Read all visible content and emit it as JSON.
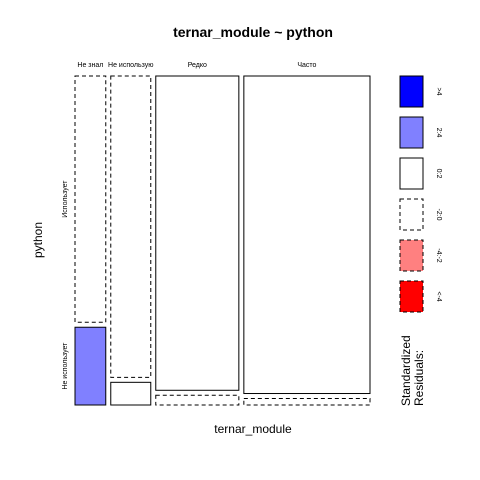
{
  "chart_data": {
    "type": "mosaic",
    "title": "ternar_module ~ python",
    "xlabel": "ternar_module",
    "ylabel": "python",
    "columns": [
      "Не знал",
      "Не использую",
      "Редко",
      "Часто"
    ],
    "rows": [
      "Использует",
      "Не использует"
    ],
    "column_shares": [
      0.1,
      0.13,
      0.27,
      0.41
    ],
    "cells": [
      {
        "column": "Не знал",
        "row": "Использует",
        "share": 0.76,
        "residual_class": "-2:0"
      },
      {
        "column": "Не знал",
        "row": "Не использует",
        "share": 0.24,
        "residual_class": "2:4"
      },
      {
        "column": "Не использую",
        "row": "Использует",
        "share": 0.93,
        "residual_class": "-2:0"
      },
      {
        "column": "Не использую",
        "row": "Не использует",
        "share": 0.07,
        "residual_class": "0:2"
      },
      {
        "column": "Редко",
        "row": "Использует",
        "share": 0.97,
        "residual_class": "0:2"
      },
      {
        "column": "Редко",
        "row": "Не использует",
        "share": 0.03,
        "residual_class": "-2:0"
      },
      {
        "column": "Часто",
        "row": "Использует",
        "share": 0.98,
        "residual_class": "0:2"
      },
      {
        "column": "Часто",
        "row": "Не использует",
        "share": 0.02,
        "residual_class": "-2:0"
      }
    ],
    "legend": {
      "title_lines": [
        "Standardized",
        "Residuals:"
      ],
      "placement": "right",
      "entries": [
        {
          "label": ">4",
          "color": "#0000ff",
          "dashed": false
        },
        {
          "label": "2:4",
          "color": "#8080ff",
          "dashed": false
        },
        {
          "label": "0:2",
          "color": "#ffffff",
          "dashed": false
        },
        {
          "label": "-2:0",
          "color": "#ffffff",
          "dashed": true
        },
        {
          "label": "-4:-2",
          "color": "#ff8080",
          "dashed": true
        },
        {
          "label": "<-4",
          "color": "#ff0000",
          "dashed": true
        }
      ]
    }
  }
}
